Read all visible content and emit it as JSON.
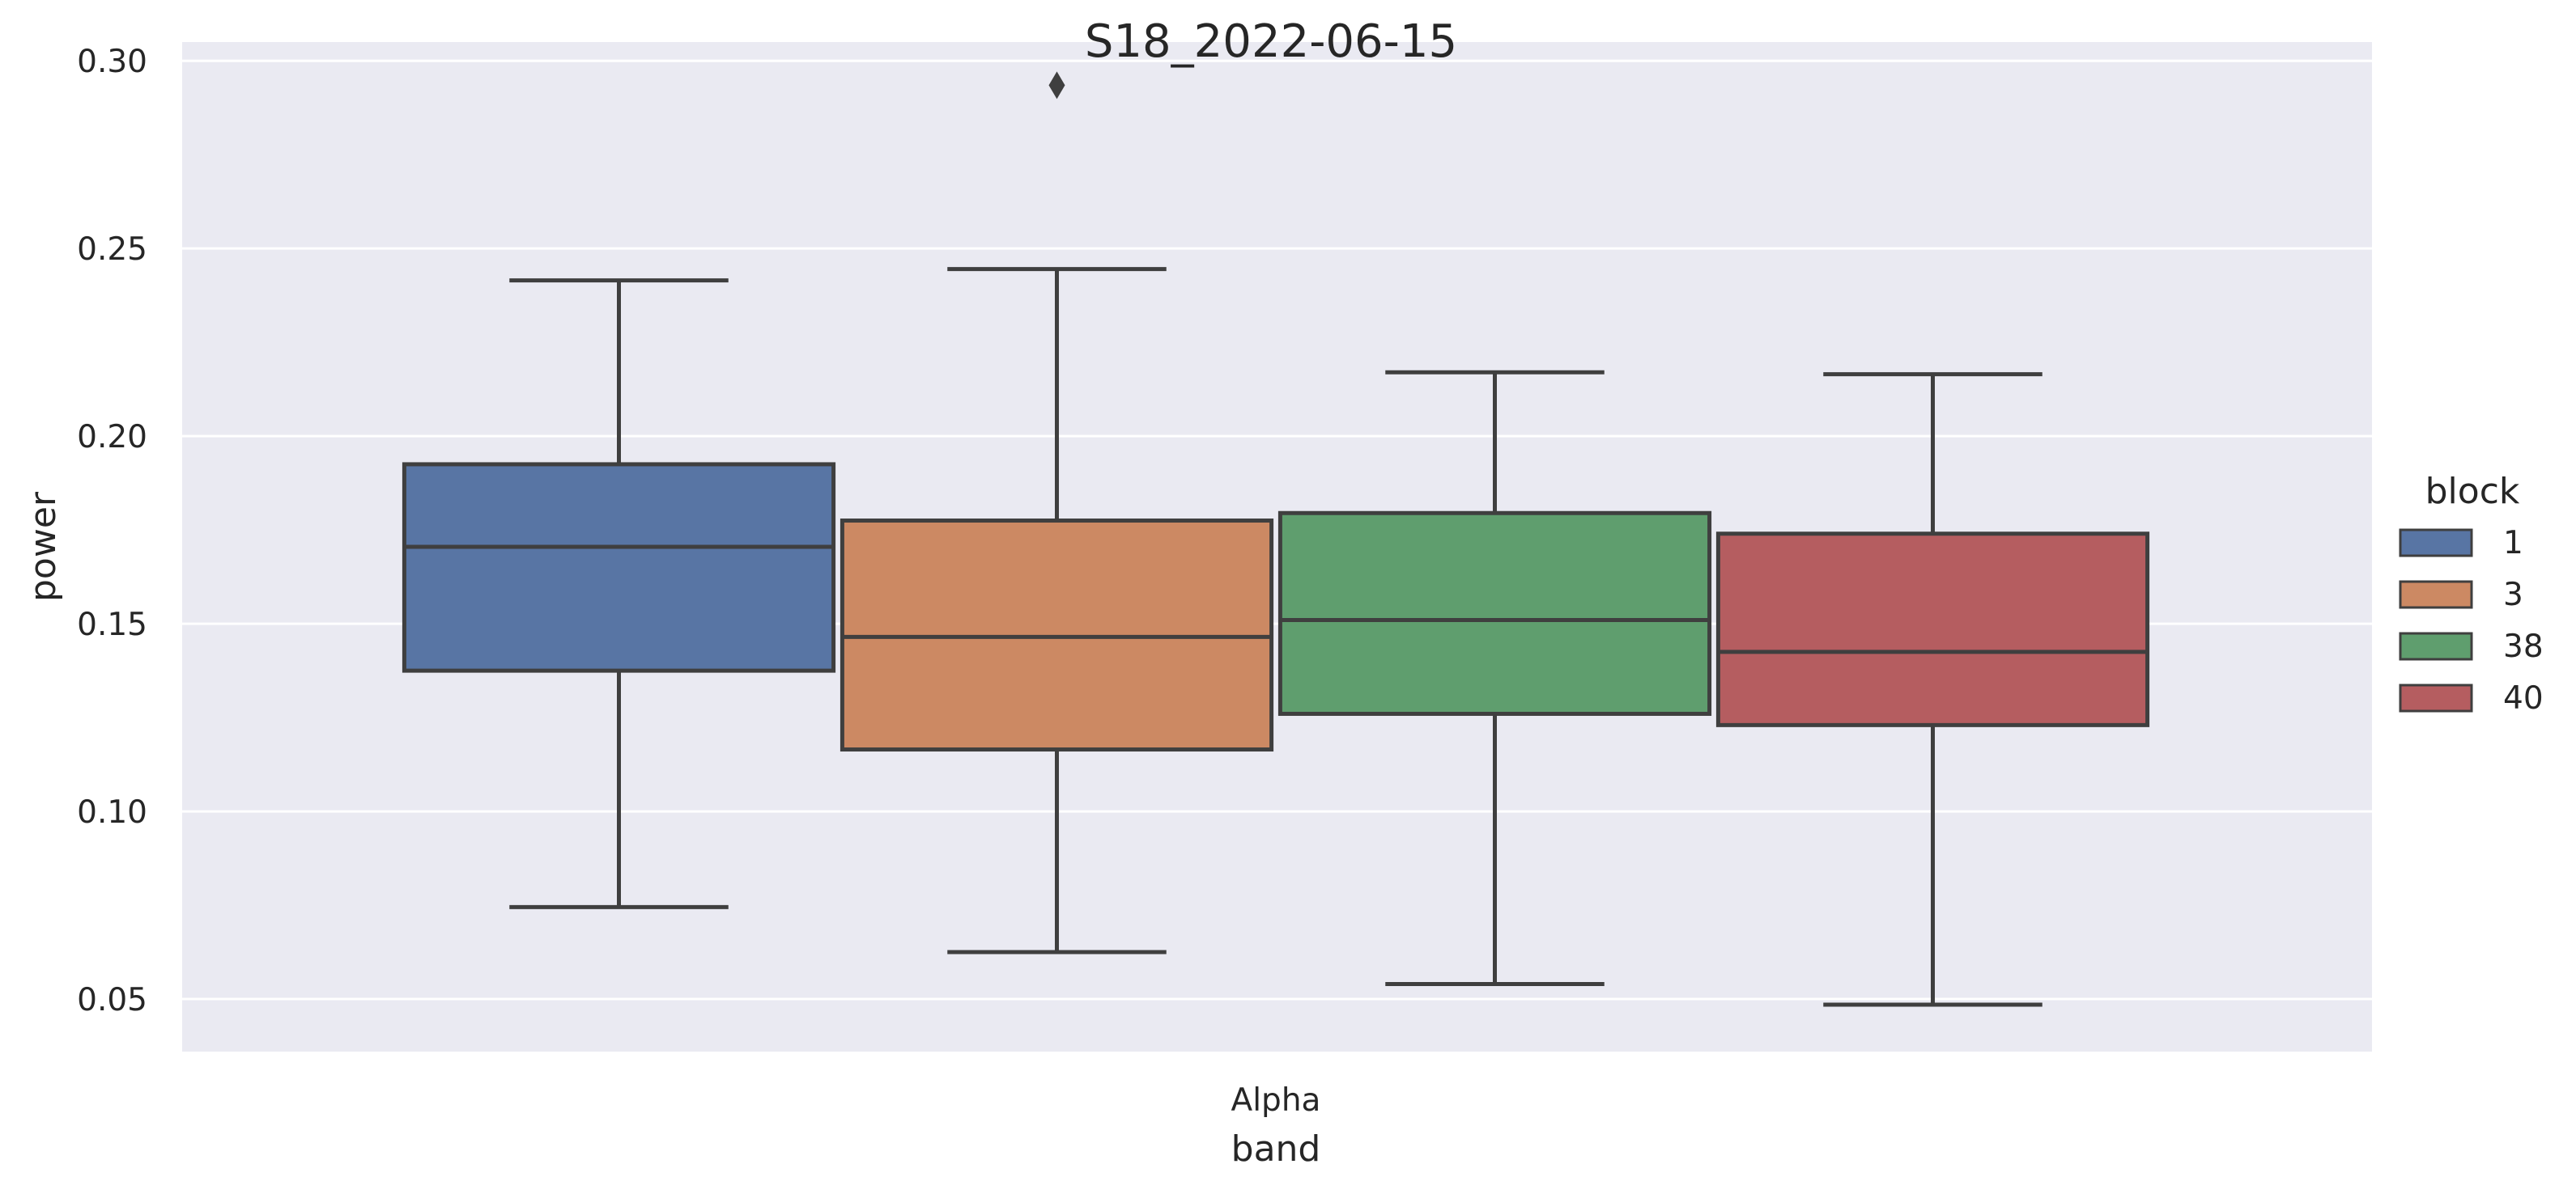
{
  "chart_data": {
    "type": "box",
    "title": "S18_2022-06-15",
    "xlabel": "band",
    "ylabel": "power",
    "categories": [
      "Alpha"
    ],
    "ylim": [
      0.036,
      0.305
    ],
    "yticks": [
      0.05,
      0.1,
      0.15,
      0.2,
      0.25,
      0.3
    ],
    "ytick_labels": [
      "0.05",
      "0.10",
      "0.15",
      "0.20",
      "0.25",
      "0.30"
    ],
    "grid": true,
    "legend": {
      "title": "block",
      "placement": "right"
    },
    "series": [
      {
        "name": "1",
        "color": "#5875a4",
        "whisker_low": 0.0745,
        "q1": 0.1375,
        "median": 0.1705,
        "q3": 0.1925,
        "whisker_high": 0.2415,
        "outliers": []
      },
      {
        "name": "3",
        "color": "#cc8963",
        "whisker_low": 0.0625,
        "q1": 0.1165,
        "median": 0.1465,
        "q3": 0.1775,
        "whisker_high": 0.2445,
        "outliers": [
          0.2935
        ]
      },
      {
        "name": "38",
        "color": "#5f9e6e",
        "whisker_low": 0.054,
        "q1": 0.126,
        "median": 0.151,
        "q3": 0.1795,
        "whisker_high": 0.217,
        "outliers": []
      },
      {
        "name": "40",
        "color": "#b55d60",
        "whisker_low": 0.0485,
        "q1": 0.123,
        "median": 0.1425,
        "q3": 0.174,
        "whisker_high": 0.2165,
        "outliers": []
      }
    ]
  }
}
